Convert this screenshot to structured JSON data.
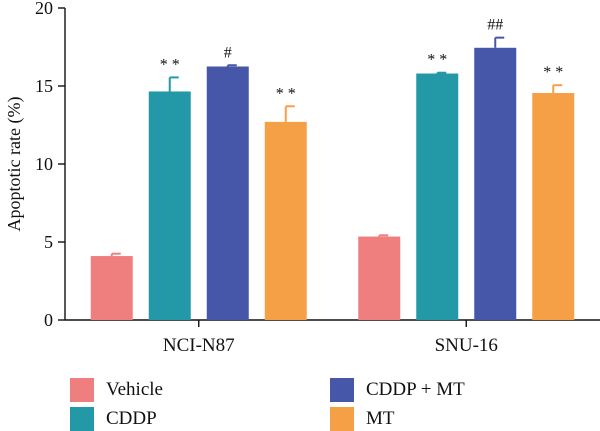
{
  "chart_data": {
    "type": "bar",
    "title": "",
    "xlabel": "",
    "ylabel": "Apoptotic rate (%)",
    "ylim": [
      0,
      20
    ],
    "yticks": [
      "0",
      "5",
      "10",
      "15",
      "20"
    ],
    "categories": [
      "NCI-N87",
      "SNU-16"
    ],
    "series": [
      {
        "name": "Vehicle",
        "color": "#EF7F7F",
        "values": [
          4.1,
          5.35
        ],
        "errors": [
          0.15,
          0.08
        ],
        "annotations": [
          "",
          ""
        ]
      },
      {
        "name": "CDDP",
        "color": "#2399A8",
        "values": [
          14.65,
          15.8
        ],
        "errors": [
          0.9,
          0.05
        ],
        "annotations": [
          "**",
          "**"
        ]
      },
      {
        "name": "CDDP + MT",
        "color": "#4656A8",
        "values": [
          16.25,
          17.45
        ],
        "errors": [
          0.08,
          0.65
        ],
        "annotations": [
          "#",
          "##"
        ]
      },
      {
        "name": "MT",
        "color": "#F5A046",
        "values": [
          12.7,
          14.55
        ],
        "errors": [
          1.0,
          0.5
        ],
        "annotations": [
          "**",
          "**"
        ]
      }
    ],
    "legend_position": "bottom",
    "grid": false
  }
}
